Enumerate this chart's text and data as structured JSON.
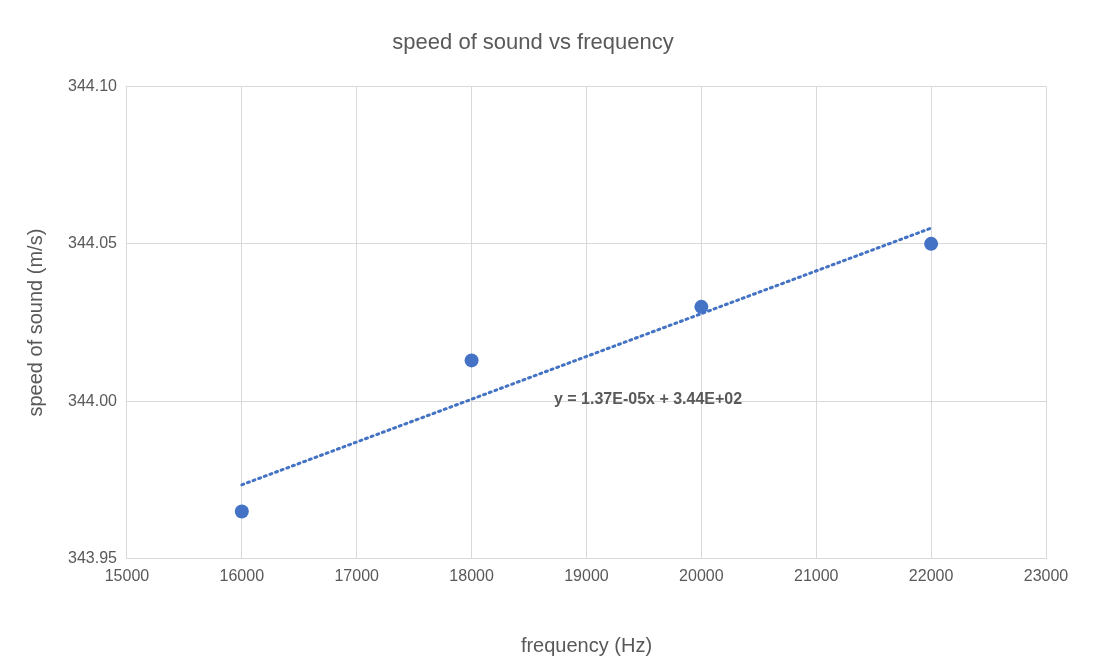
{
  "chart_data": {
    "type": "scatter",
    "title": "speed of sound vs frequency",
    "xlabel": "frequency (Hz)",
    "ylabel": "speed of sound (m/s)",
    "x": [
      16000,
      18000,
      20000,
      22000
    ],
    "series": [
      {
        "type": "scatter",
        "color": "#4472c4",
        "values": [
          343.965,
          344.013,
          344.03,
          344.05
        ],
        "marker": "circle"
      },
      {
        "type": "line",
        "color": "#4472c4",
        "x": [
          16000,
          22000
        ],
        "values": [
          343.9735,
          344.055
        ],
        "marker": "none",
        "line_style": "dotted"
      }
    ],
    "xlim": [
      15000,
      23000
    ],
    "xticks": [
      15000,
      16000,
      17000,
      18000,
      19000,
      20000,
      21000,
      22000,
      23000
    ],
    "ylim": [
      343.95,
      344.1
    ],
    "yticks": [
      {
        "value": 343.95,
        "label": "343.95"
      },
      {
        "value": 344,
        "label": "344.00"
      },
      {
        "value": 344.05,
        "label": "344.05"
      },
      {
        "value": 344.1,
        "label": "344.10"
      }
    ],
    "grid": true,
    "legend": false,
    "annotations": [
      "y = 1.37E-05x + 3.44E+02"
    ]
  }
}
